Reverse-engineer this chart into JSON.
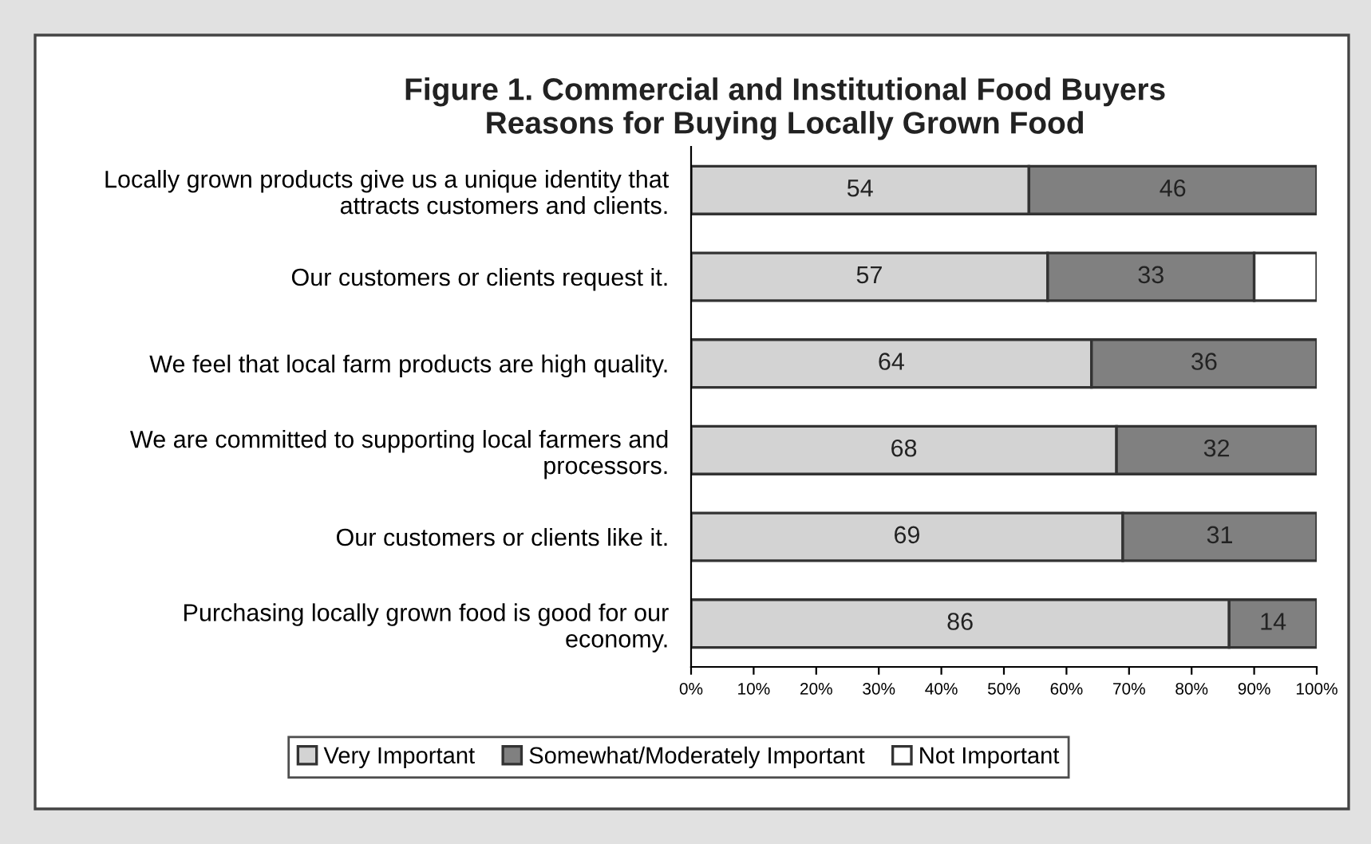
{
  "chart_data": {
    "type": "bar",
    "orientation": "horizontal",
    "stacked": true,
    "title": "Figure 1. Commercial and Institutional Food Buyers\nReasons for Buying Locally Grown Food",
    "categories": [
      "Locally grown products give us a unique identity that\nattracts customers and clients.",
      "Our customers or clients request it.",
      "We feel that local farm products are high quality.",
      "We are committed to supporting local farmers and\nprocessors.",
      "Our customers or clients like it.",
      "Purchasing locally grown food is good for our\neconomy."
    ],
    "series": [
      {
        "name": "Very Important",
        "color": "#d3d3d3",
        "values": [
          54,
          57,
          64,
          68,
          69,
          86
        ],
        "value_labels": [
          "54",
          "57",
          "64",
          "68",
          "69",
          "86"
        ]
      },
      {
        "name": "Somewhat/Moderately Important",
        "color": "#808080",
        "values": [
          46,
          33,
          36,
          32,
          31,
          14
        ],
        "value_labels": [
          "46",
          "33",
          "36",
          "32",
          "31",
          "14"
        ]
      },
      {
        "name": "Not Important",
        "color": "#ffffff",
        "values": [
          null,
          10,
          null,
          null,
          null,
          null
        ],
        "value_labels": [
          null,
          null,
          null,
          null,
          null,
          null
        ]
      }
    ],
    "xlim": [
      0,
      100
    ],
    "xticks": [
      {
        "value": 0,
        "label": "0%"
      },
      {
        "value": 10,
        "label": "10%"
      },
      {
        "value": 20,
        "label": "20%"
      },
      {
        "value": 30,
        "label": "30%"
      },
      {
        "value": 40,
        "label": "40%"
      },
      {
        "value": 50,
        "label": "50%"
      },
      {
        "value": 60,
        "label": "60%"
      },
      {
        "value": 70,
        "label": "70%"
      },
      {
        "value": 80,
        "label": "80%"
      },
      {
        "value": 90,
        "label": "90%"
      },
      {
        "value": 100,
        "label": "100%"
      }
    ],
    "grid": false,
    "legend": "bottom"
  }
}
